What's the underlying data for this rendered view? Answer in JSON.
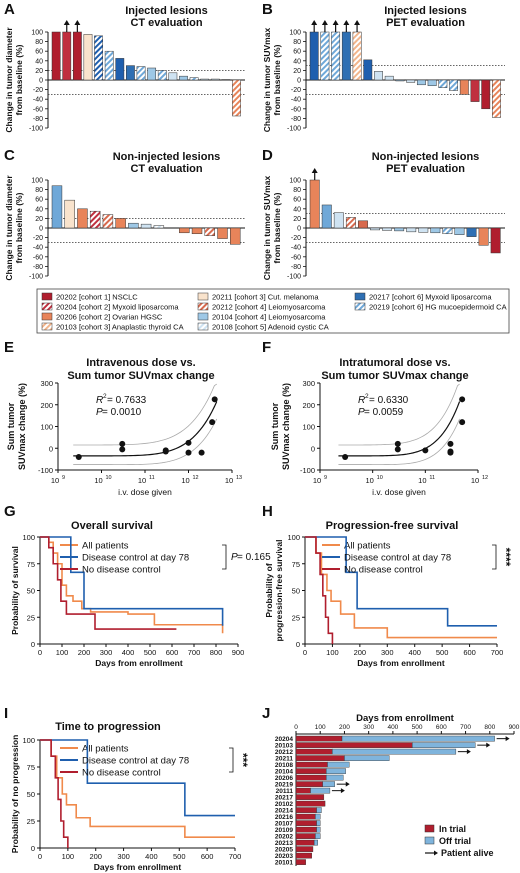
{
  "panel_letters": [
    "A",
    "B",
    "C",
    "D",
    "E",
    "F",
    "G",
    "H",
    "I",
    "J"
  ],
  "colors": {
    "nsclc": "#b01e2e",
    "myxoid_lipo_c2": "#c0303f",
    "ovarian": "#e8845a",
    "thyroid": "#f2b58c",
    "melanoma": "#f9e3cc",
    "leio_c4_a": "#d86a4e",
    "leio_c4_b": "#9ec8e6",
    "adenoid": "#cfe3f2",
    "myxoid_lipo_c6": "#2e6fb3",
    "hg_muco": "#6fa8d8",
    "all_patients": "#f08a4b",
    "disease_control": "#1f5fae",
    "no_disease_control": "#b01e2e",
    "in_trial": "#b01e2e",
    "off_trial": "#7fb4dc"
  },
  "legend": {
    "col1": [
      {
        "label": "20202 [cohort 1] NSCLC",
        "color": "#b01e2e",
        "hatch": false
      },
      {
        "label": "20204 [cohort 2] Myxoid liposarcoma",
        "color": "#c0303f",
        "hatch": true
      },
      {
        "label": "20206 [cohort 2] Ovarian HGSC",
        "color": "#e8845a",
        "hatch": false
      },
      {
        "label": "20103 [cohort 3] Anaplastic thyroid CA",
        "color": "#f2b58c",
        "hatch": true
      }
    ],
    "col2": [
      {
        "label": "20211 [cohort 3] Cut. melanoma",
        "color": "#f9e3cc",
        "hatch": false
      },
      {
        "label": "20212 [cohort 4] Leiomyosarcoma",
        "color": "#d86a4e",
        "hatch": true
      },
      {
        "label": "20104 [cohort 4] Leiomyosarcoma",
        "color": "#9ec8e6",
        "hatch": false
      },
      {
        "label": "20108 [cohort 5] Adenoid cystic CA",
        "color": "#cfe3f2",
        "hatch": true
      }
    ],
    "col3": [
      {
        "label": "20217 [cohort 6] Myxoid liposarcoma",
        "color": "#2e6fb3",
        "hatch": false
      },
      {
        "label": "20219 [cohort 6] HG mucoepidermoid CA",
        "color": "#6fa8d8",
        "hatch": true
      }
    ]
  },
  "chart_data": [
    {
      "id": "A",
      "type": "bar",
      "title": "Injected lesions",
      "subtitle": "CT evaluation",
      "ylabel": [
        "Change in tumor diameter",
        "from baseline (%)"
      ],
      "ylim": [
        -100,
        100
      ],
      "yticks": [
        100,
        80,
        60,
        40,
        20,
        0,
        -20,
        -40,
        -60,
        -80,
        -100
      ],
      "reference_lines": [
        20,
        -30
      ],
      "values": [
        100,
        100,
        100,
        95,
        92,
        60,
        45,
        30,
        28,
        25,
        20,
        15,
        8,
        5,
        2,
        2,
        1,
        -75
      ],
      "colors": [
        "#b01e2e",
        "#c0303f",
        "#b01e2e",
        "#f9e3cc",
        "#1f5fae",
        "#6fa8d8",
        "#1f5fae",
        "#2e6fb3",
        "#6fa8d8",
        "#9ec8e6",
        "#6fa8d8",
        "#cfe3f2",
        "#9ec8e6",
        "#6fa8d8",
        "#cfe3f2",
        "#cfe3f2",
        "#cfe3f2",
        "#e8845a"
      ],
      "hatched": [
        false,
        false,
        false,
        false,
        true,
        true,
        false,
        false,
        true,
        false,
        true,
        false,
        false,
        true,
        false,
        false,
        false,
        true
      ],
      "arrows_over": [
        1,
        2
      ]
    },
    {
      "id": "B",
      "type": "bar",
      "title": "Injected lesions",
      "subtitle": "PET evaluation",
      "ylabel": [
        "Change in tumor SUVmax",
        "from baseline (%)"
      ],
      "ylim": [
        -100,
        100
      ],
      "yticks": [
        100,
        80,
        60,
        40,
        20,
        0,
        -20,
        -40,
        -60,
        -80,
        -100
      ],
      "reference_lines": [
        30,
        -30
      ],
      "values": [
        100,
        100,
        100,
        100,
        100,
        42,
        18,
        8,
        -2,
        -5,
        -10,
        -12,
        -16,
        -22,
        -30,
        -45,
        -60,
        -78
      ],
      "colors": [
        "#1f5fae",
        "#6fa8d8",
        "#6fa8d8",
        "#2e6fb3",
        "#f2b58c",
        "#1f5fae",
        "#cfe3f2",
        "#cfe3f2",
        "#9ec8e6",
        "#cfe3f2",
        "#9ec8e6",
        "#9ec8e6",
        "#6fa8d8",
        "#6fa8d8",
        "#e8845a",
        "#c0303f",
        "#b01e2e",
        "#e8845a"
      ],
      "hatched": [
        false,
        true,
        true,
        false,
        true,
        false,
        false,
        false,
        false,
        false,
        false,
        false,
        true,
        true,
        false,
        false,
        false,
        true
      ],
      "arrows_over": [
        0,
        1,
        2,
        3,
        4
      ]
    },
    {
      "id": "C",
      "type": "bar",
      "title": "Non-injected lesions",
      "subtitle": "CT evaluation",
      "ylabel": [
        "Change in tumor diameter",
        "from baseline (%)"
      ],
      "ylim": [
        -100,
        100
      ],
      "yticks": [
        100,
        80,
        60,
        40,
        20,
        0,
        -20,
        -40,
        -60,
        -80,
        -100
      ],
      "reference_lines": [
        20,
        -30
      ],
      "values": [
        88,
        58,
        40,
        35,
        28,
        20,
        10,
        8,
        5,
        0,
        -10,
        -12,
        -16,
        -22,
        -34
      ],
      "colors": [
        "#6fa8d8",
        "#f9e3cc",
        "#e8845a",
        "#c0303f",
        "#d86a4e",
        "#e8845a",
        "#9ec8e6",
        "#cfe3f2",
        "#cfe3f2",
        "#cfe3f2",
        "#e8845a",
        "#e8845a",
        "#d86a4e",
        "#e8845a",
        "#e8845a"
      ],
      "hatched": [
        false,
        false,
        false,
        true,
        true,
        false,
        false,
        false,
        true,
        false,
        false,
        false,
        true,
        false,
        false
      ],
      "arrows_over": []
    },
    {
      "id": "D",
      "type": "bar",
      "title": "Non-injected lesions",
      "subtitle": "PET evaluation",
      "ylabel": [
        "Change in tumor SUVmax",
        "from baseline (%)"
      ],
      "ylim": [
        -100,
        100
      ],
      "yticks": [
        100,
        80,
        60,
        40,
        20,
        0,
        -20,
        -40,
        -60,
        -80,
        -100
      ],
      "reference_lines": [
        30,
        -30
      ],
      "values": [
        100,
        48,
        32,
        22,
        15,
        -4,
        -5,
        -6,
        -8,
        -9,
        -10,
        -12,
        -14,
        -18,
        -36,
        -52
      ],
      "colors": [
        "#e8845a",
        "#6fa8d8",
        "#cfe3f2",
        "#d86a4e",
        "#d86a4e",
        "#cfe3f2",
        "#cfe3f2",
        "#9ec8e6",
        "#cfe3f2",
        "#cfe3f2",
        "#9ec8e6",
        "#6fa8d8",
        "#9ec8e6",
        "#2e6fb3",
        "#e8845a",
        "#b01e2e"
      ],
      "hatched": [
        false,
        false,
        false,
        true,
        false,
        false,
        false,
        false,
        false,
        false,
        false,
        true,
        false,
        false,
        false,
        false
      ],
      "arrows_over": [
        0
      ]
    },
    {
      "id": "E",
      "type": "scatter",
      "title": "Intravenous dose vs.",
      "subtitle": "Sum tumor SUVmax change",
      "xlabel": "i.v. dose given",
      "ylabel": [
        "Sum tumor",
        "SUVmax change (%)"
      ],
      "xscale": "log",
      "xlim_exp": [
        9,
        13
      ],
      "xtick_labels": [
        "10",
        "10",
        "10",
        "10",
        "10"
      ],
      "xtick_exps": [
        "9",
        "10",
        "11",
        "12",
        "13"
      ],
      "ylim": [
        -100,
        300
      ],
      "yticks": [
        300,
        200,
        100,
        0,
        -100
      ],
      "stats": {
        "r2_label": "R",
        "r2_exp": "2",
        "r2_value": " = 0.7633",
        "p_label": "P",
        "p_value": " = 0.0010"
      },
      "points": [
        [
          3000000000.0,
          -40
        ],
        [
          30000000000.0,
          20
        ],
        [
          30000000000.0,
          -5
        ],
        [
          300000000000.0,
          -10
        ],
        [
          300000000000.0,
          -15
        ],
        [
          1000000000000.0,
          -20
        ],
        [
          1000000000000.0,
          25
        ],
        [
          2000000000000.0,
          -20
        ],
        [
          3500000000000.0,
          120
        ],
        [
          4000000000000.0,
          225
        ]
      ]
    },
    {
      "id": "F",
      "type": "scatter",
      "title": "Intratumoral dose vs.",
      "subtitle": "Sum tumor SUVmax change",
      "xlabel": "i.v. dose given",
      "ylabel": [
        "Sum tumor",
        "SUVmax change (%)"
      ],
      "xscale": "log",
      "xlim_exp": [
        9,
        12
      ],
      "xtick_labels": [
        "10",
        "10",
        "10",
        "10"
      ],
      "xtick_exps": [
        "9",
        "10",
        "11",
        "12"
      ],
      "ylim": [
        -100,
        300
      ],
      "yticks": [
        300,
        200,
        100,
        0,
        -100
      ],
      "stats": {
        "r2_label": "R",
        "r2_exp": "2",
        "r2_value": " = 0.6330",
        "p_label": "P",
        "p_value": " = 0.0059"
      },
      "points": [
        [
          3000000000.0,
          -40
        ],
        [
          30000000000.0,
          20
        ],
        [
          30000000000.0,
          -5
        ],
        [
          100000000000.0,
          -10
        ],
        [
          300000000000.0,
          -15
        ],
        [
          300000000000.0,
          -20
        ],
        [
          300000000000.0,
          20
        ],
        [
          500000000000.0,
          120
        ],
        [
          500000000000.0,
          225
        ]
      ]
    },
    {
      "id": "G",
      "type": "line",
      "title": "Overall survival",
      "xlabel": "Days from enrollment",
      "ylabel": [
        "Probability of survival"
      ],
      "xlim": [
        0,
        900
      ],
      "xticks": [
        0,
        100,
        200,
        300,
        400,
        500,
        600,
        700,
        800,
        900
      ],
      "ylim": [
        0,
        100
      ],
      "yticks": [
        0,
        25,
        50,
        75,
        100
      ],
      "annotation": {
        "label": "P",
        "value": " = 0.165"
      },
      "series": [
        {
          "name": "All patients",
          "color": "#f08a4b",
          "steps": [
            [
              0,
              100
            ],
            [
              40,
              95
            ],
            [
              60,
              85
            ],
            [
              80,
              75
            ],
            [
              100,
              55
            ],
            [
              120,
              45
            ],
            [
              150,
              40
            ],
            [
              190,
              33
            ],
            [
              230,
              30
            ],
            [
              400,
              28
            ],
            [
              520,
              18
            ],
            [
              830,
              10
            ]
          ]
        },
        {
          "name": "Disease control at day 78",
          "color": "#1f5fae",
          "steps": [
            [
              0,
              100
            ],
            [
              80,
              100
            ],
            [
              140,
              67
            ],
            [
              200,
              33
            ],
            [
              830,
              17
            ]
          ]
        },
        {
          "name": "No disease control",
          "color": "#b01e2e",
          "steps": [
            [
              0,
              100
            ],
            [
              40,
              90
            ],
            [
              60,
              75
            ],
            [
              80,
              60
            ],
            [
              95,
              40
            ],
            [
              120,
              28
            ],
            [
              250,
              14
            ],
            [
              620,
              14
            ]
          ]
        }
      ]
    },
    {
      "id": "H",
      "type": "line",
      "title": "Progression-free survival",
      "xlabel": "Days from enrollment",
      "ylabel": [
        "Probability of",
        "progression-free survival"
      ],
      "xlim": [
        0,
        700
      ],
      "xticks": [
        0,
        100,
        200,
        300,
        400,
        500,
        600,
        700
      ],
      "ylim": [
        0,
        100
      ],
      "yticks": [
        0,
        25,
        50,
        75,
        100
      ],
      "annotation": {
        "label": "****",
        "value": ""
      },
      "series": [
        {
          "name": "All patients",
          "color": "#f08a4b",
          "steps": [
            [
              0,
              100
            ],
            [
              40,
              85
            ],
            [
              60,
              65
            ],
            [
              80,
              50
            ],
            [
              95,
              40
            ],
            [
              130,
              28
            ],
            [
              180,
              15
            ],
            [
              300,
              6
            ],
            [
              700,
              6
            ]
          ]
        },
        {
          "name": "Disease control at day 78",
          "color": "#1f5fae",
          "steps": [
            [
              0,
              100
            ],
            [
              120,
              100
            ],
            [
              150,
              67
            ],
            [
              190,
              33
            ],
            [
              520,
              17
            ],
            [
              700,
              17
            ]
          ]
        },
        {
          "name": "No disease control",
          "color": "#b01e2e",
          "steps": [
            [
              0,
              100
            ],
            [
              40,
              85
            ],
            [
              55,
              65
            ],
            [
              65,
              45
            ],
            [
              75,
              25
            ],
            [
              85,
              10
            ],
            [
              100,
              0
            ]
          ]
        }
      ]
    },
    {
      "id": "I",
      "type": "line",
      "title": "Time to progression",
      "xlabel": "Days from enrollment",
      "ylabel": [
        "Probability of no progression"
      ],
      "xlim": [
        0,
        700
      ],
      "xticks": [
        0,
        100,
        200,
        300,
        400,
        500,
        600,
        700
      ],
      "ylim": [
        0,
        100
      ],
      "yticks": [
        0,
        25,
        50,
        75,
        100
      ],
      "annotation": {
        "label": "***",
        "value": ""
      },
      "series": [
        {
          "name": "All patients",
          "color": "#f08a4b",
          "steps": [
            [
              0,
              100
            ],
            [
              40,
              85
            ],
            [
              60,
              65
            ],
            [
              80,
              50
            ],
            [
              95,
              40
            ],
            [
              130,
              28
            ],
            [
              180,
              20
            ],
            [
              300,
              20
            ],
            [
              520,
              10
            ],
            [
              700,
              10
            ]
          ]
        },
        {
          "name": "Disease control at day 78",
          "color": "#1f5fae",
          "steps": [
            [
              0,
              100
            ],
            [
              150,
              100
            ],
            [
              170,
              60
            ],
            [
              520,
              30
            ],
            [
              700,
              30
            ]
          ]
        },
        {
          "name": "No disease control",
          "color": "#b01e2e",
          "steps": [
            [
              0,
              100
            ],
            [
              40,
              85
            ],
            [
              55,
              65
            ],
            [
              65,
              45
            ],
            [
              75,
              25
            ],
            [
              85,
              10
            ],
            [
              100,
              0
            ]
          ]
        }
      ]
    },
    {
      "id": "J",
      "type": "bar",
      "orientation": "horizontal",
      "xlabel": "Days from enrollment",
      "xlim": [
        0,
        900
      ],
      "xticks": [
        0,
        100,
        200,
        300,
        400,
        500,
        600,
        700,
        800,
        900
      ],
      "categories": [
        "20204",
        "20103",
        "20212",
        "20211",
        "20108",
        "20104",
        "20206",
        "20219",
        "20111",
        "20217",
        "20102",
        "20214",
        "20216",
        "20107",
        "20109",
        "20202",
        "20213",
        "20205",
        "20203",
        "20101"
      ],
      "in_trial": [
        190,
        480,
        150,
        200,
        130,
        125,
        125,
        110,
        60,
        115,
        120,
        85,
        80,
        85,
        85,
        80,
        75,
        70,
        65,
        40
      ],
      "off_trial": [
        630,
        260,
        510,
        185,
        90,
        80,
        70,
        50,
        80,
        0,
        0,
        20,
        20,
        15,
        15,
        20,
        15,
        0,
        0,
        0
      ],
      "patient_alive": [
        true,
        true,
        true,
        false,
        false,
        false,
        false,
        true,
        true,
        false,
        false,
        false,
        false,
        false,
        false,
        false,
        false,
        false,
        false,
        false
      ],
      "legend": [
        "In trial",
        "Off trial",
        "Patient alive"
      ]
    }
  ]
}
